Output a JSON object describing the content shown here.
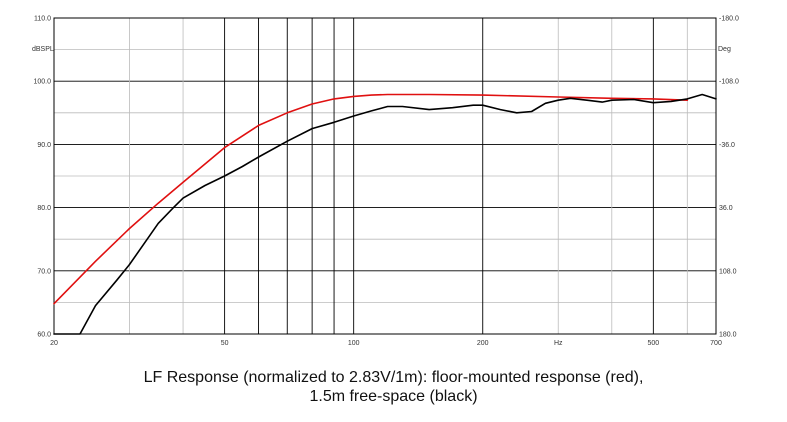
{
  "caption": {
    "line1": "LF Response (normalized to 2.83V/1m): floor-mounted response (red),",
    "line2": "1.5m free-space (black)"
  },
  "chart_data": {
    "type": "line",
    "title": "",
    "xlabel": "Hz",
    "ylabel": "dBSPL",
    "ylabel_right": "Deg",
    "x_scale": "log",
    "xlim": [
      20,
      700
    ],
    "ylim": [
      60,
      110
    ],
    "right_axis_lim": [
      180,
      -180
    ],
    "grid": true,
    "x_tick_labels": [
      "20",
      "50",
      "100",
      "200",
      "Hz",
      "500",
      "700"
    ],
    "x_tick_values": [
      20,
      50,
      100,
      200,
      300,
      500,
      700
    ],
    "y_tick_labels": [
      "60.0",
      "70.0",
      "80.0",
      "90.0",
      "100.0",
      "110.0"
    ],
    "y_tick_values": [
      60,
      70,
      80,
      90,
      100,
      110
    ],
    "right_tick_labels": [
      "180.0",
      "108.0",
      "36.0",
      "-36.0",
      "-108.0",
      "-180.0"
    ],
    "right_tick_values": [
      180,
      108,
      36,
      -36,
      -108,
      -180
    ],
    "colors": {
      "floor": "#e01010",
      "free": "#000000",
      "grid": "#000000"
    },
    "series": [
      {
        "color": "#e01010",
        "x": [
          20,
          25,
          30,
          35,
          40,
          45,
          50,
          60,
          70,
          80,
          90,
          100,
          110,
          120,
          150,
          200,
          300,
          400,
          500,
          600
        ],
        "y": [
          64.8,
          71.5,
          76.7,
          80.7,
          84.0,
          86.9,
          89.5,
          93.0,
          95.0,
          96.4,
          97.2,
          97.6,
          97.8,
          97.9,
          97.9,
          97.8,
          97.5,
          97.3,
          97.2,
          97.0
        ]
      },
      {
        "color": "#000000",
        "x": [
          20,
          23,
          25,
          28,
          30,
          33,
          35,
          38,
          40,
          45,
          50,
          55,
          60,
          70,
          80,
          90,
          100,
          110,
          120,
          130,
          150,
          170,
          190,
          200,
          220,
          240,
          260,
          280,
          300,
          320,
          350,
          380,
          400,
          450,
          500,
          550,
          600,
          650,
          700
        ],
        "y": [
          60.0,
          60.0,
          64.5,
          68.5,
          71.0,
          75.0,
          77.5,
          80.0,
          81.5,
          83.5,
          85.0,
          86.5,
          88.0,
          90.5,
          92.5,
          93.5,
          94.5,
          95.3,
          96.0,
          96.0,
          95.5,
          95.8,
          96.2,
          96.2,
          95.5,
          95.0,
          95.2,
          96.5,
          97.0,
          97.3,
          97.0,
          96.7,
          97.0,
          97.1,
          96.6,
          96.8,
          97.2,
          97.9,
          97.2
        ]
      }
    ]
  }
}
